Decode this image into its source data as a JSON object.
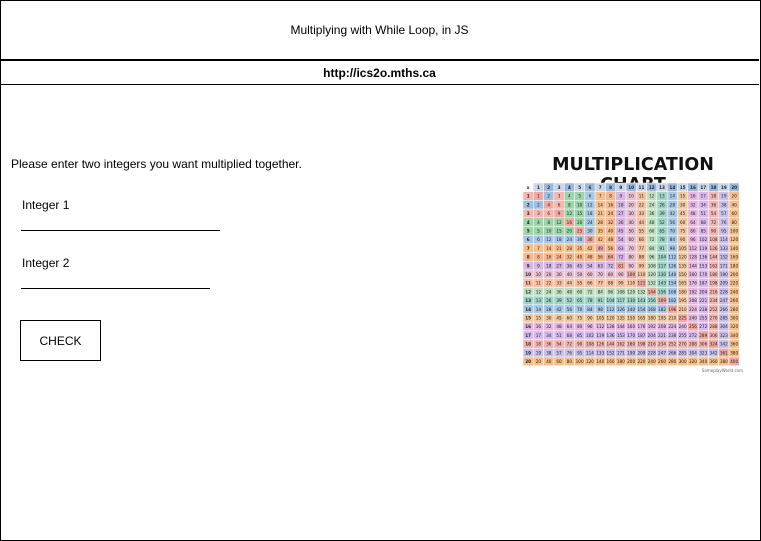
{
  "header": {
    "title": "Multiplying with While Loop, in JS"
  },
  "url_bar": {
    "text": "http://ics2o.mths.ca"
  },
  "form": {
    "prompt": "Please enter two integers you want multiplied together.",
    "integer1_label": "Integer 1",
    "integer2_label": "Integer 2",
    "check_button": "CHECK"
  },
  "chart": {
    "title": "MULTIPLICATION CHART",
    "corner": "x",
    "size": 20,
    "footer": "SomeplayWorld.com",
    "colors": {
      "header": "#c9d7e9",
      "header_alt": "#9fb8d8",
      "rows": [
        "#f4b6b0",
        "#9fbfe3",
        "#f4b6b0",
        "#9ed4a9",
        "#9ed4a9",
        "#a8c8e8",
        "#f7c08a",
        "#f6b98c",
        "#d7b5e6",
        "#e8c0d0",
        "#f5c2a2",
        "#bfe0c1",
        "#9ed4c5",
        "#a8c8e8",
        "#f0c8a0",
        "#e6b8e0",
        "#d8b8ee",
        "#f4b6b0",
        "#c8c0ea",
        "#f7c08a"
      ]
    }
  }
}
